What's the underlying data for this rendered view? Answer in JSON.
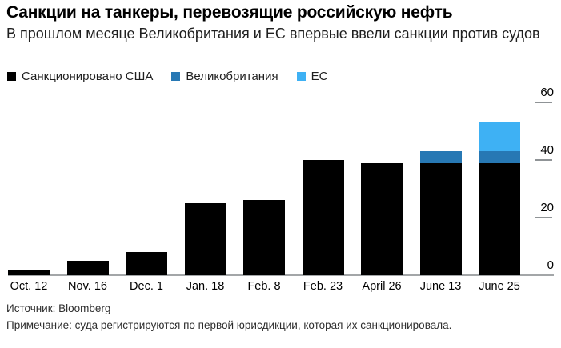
{
  "header": {
    "title": "Санкции на танкеры, перевозящие российскую нефть",
    "subtitle": "В прошлом месяце Великобритания и ЕС впервые ввели санкции против судов"
  },
  "legend": [
    {
      "label": "Санкционировано США",
      "color": "#000000"
    },
    {
      "label": "Великобритания",
      "color": "#2778b4"
    },
    {
      "label": "ЕС",
      "color": "#3eb1f4"
    }
  ],
  "chart_data": {
    "type": "bar",
    "stacked": true,
    "title": "Санкции на танкеры, перевозящие российскую нефть",
    "subtitle": "В прошлом месяце Великобритания и ЕС впервые ввели санкции против судов",
    "categories": [
      "Oct. 12",
      "Nov. 16",
      "Dec. 1",
      "Jan. 18",
      "Feb. 8",
      "Feb. 23",
      "April 26",
      "June 13",
      "June 25"
    ],
    "series": [
      {
        "name": "Санкционировано США",
        "color": "#000000",
        "values": [
          2,
          5,
          8,
          25,
          26,
          40,
          39,
          39,
          39
        ]
      },
      {
        "name": "Великобритания",
        "color": "#2778b4",
        "values": [
          0,
          0,
          0,
          0,
          0,
          0,
          0,
          4,
          4
        ]
      },
      {
        "name": "ЕС",
        "color": "#3eb1f4",
        "values": [
          0,
          0,
          0,
          0,
          0,
          0,
          0,
          0,
          10
        ]
      }
    ],
    "xlabel": "",
    "ylabel": "",
    "ylim": [
      0,
      60
    ],
    "y_ticks": [
      0,
      20,
      40,
      60
    ],
    "grid": "off",
    "axis_tick_side": "right",
    "legend_position": "top-left"
  },
  "footer": {
    "source": "Источник: Bloomberg",
    "note": "Примечание: суда регистрируются по первой юрисдикции, которая их санкционировала."
  }
}
